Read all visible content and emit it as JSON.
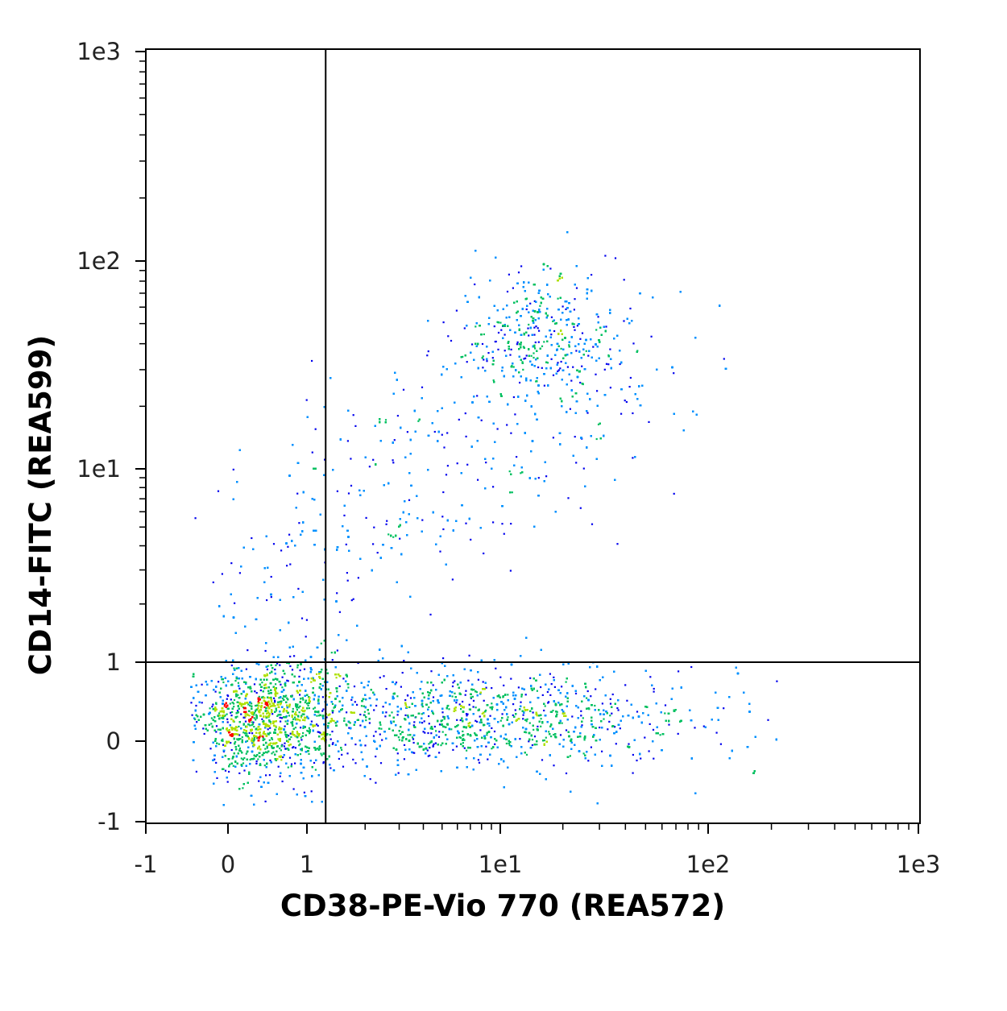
{
  "chart_data": {
    "type": "scatter",
    "subtype": "flow-cytometry-density-dot-plot",
    "xlabel": "CD38-PE-Vio 770 (REA572)",
    "ylabel": "CD14-FITC (REA599)",
    "x_axis": {
      "scale": "biexponential",
      "range": [
        -1,
        1000
      ],
      "ticks": [
        {
          "value": -1,
          "label": "-1"
        },
        {
          "value": 0,
          "label": "0"
        },
        {
          "value": 1,
          "label": "1"
        },
        {
          "value": 10,
          "label": "1e1"
        },
        {
          "value": 100,
          "label": "1e2"
        },
        {
          "value": 1000,
          "label": "1e3"
        }
      ]
    },
    "y_axis": {
      "scale": "biexponential",
      "range": [
        -1,
        1000
      ],
      "ticks": [
        {
          "value": -1,
          "label": "-1"
        },
        {
          "value": 0,
          "label": "0"
        },
        {
          "value": 1,
          "label": "1"
        },
        {
          "value": 10,
          "label": "1e1"
        },
        {
          "value": 100,
          "label": "1e2"
        },
        {
          "value": 1000,
          "label": "1e3"
        }
      ]
    },
    "quadrant_gate": {
      "x": 1.25,
      "y": 1
    },
    "grid": false,
    "legend": "none",
    "density_colors": [
      "#0000ee",
      "#0090ff",
      "#00c060",
      "#aee000",
      "#ff0000"
    ],
    "populations": [
      {
        "x": 0.45,
        "y": 0.3,
        "spread_x": 0.55,
        "spread_y": 0.4,
        "weight": 0.34
      },
      {
        "x": 12,
        "y": 0.3,
        "spread_x": 5,
        "spread_y": 0.3,
        "weight": 0.4
      },
      {
        "x": 15,
        "y": 45,
        "spread_x": 4,
        "spread_y": 10,
        "weight": 0.12
      },
      {
        "x": 3,
        "y": 4,
        "spread_x": 4,
        "spread_y": 4,
        "weight": 0.14
      }
    ]
  }
}
